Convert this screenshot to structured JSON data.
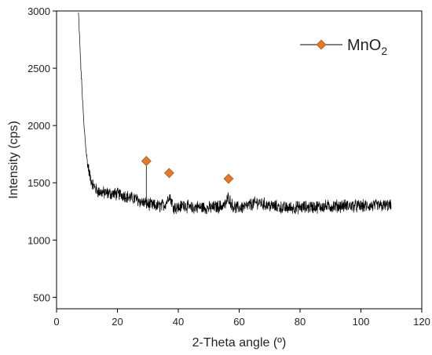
{
  "chart_data": {
    "type": "line",
    "xlabel": "2-Theta angle (º)",
    "ylabel": "Intensity (cps)",
    "xlim": [
      0,
      120
    ],
    "ylim": [
      400,
      3000
    ],
    "xticks": [
      0,
      20,
      40,
      60,
      80,
      100,
      120
    ],
    "yticks": [
      500,
      1000,
      1500,
      2000,
      2500,
      3000
    ],
    "grid": false,
    "legend_position": "top-right",
    "series": [
      {
        "role": "xrd-pattern",
        "color": "#000000",
        "x": [
          7.2,
          8,
          9,
          10,
          11,
          12,
          13,
          14,
          16,
          18,
          20,
          22,
          24,
          26,
          28,
          29.5,
          30.5,
          32,
          34,
          35.5,
          36.5,
          37,
          37.6,
          38.5,
          40,
          42,
          44,
          46,
          50,
          54,
          55.5,
          56.5,
          57.5,
          59,
          62,
          66,
          70,
          75,
          80,
          85,
          90,
          95,
          100,
          105,
          110
        ],
        "y": [
          2980,
          2500,
          2000,
          1700,
          1550,
          1480,
          1440,
          1420,
          1410,
          1405,
          1400,
          1395,
          1370,
          1360,
          1330,
          1320,
          1310,
          1300,
          1295,
          1310,
          1350,
          1400,
          1350,
          1290,
          1280,
          1310,
          1275,
          1290,
          1280,
          1295,
          1310,
          1380,
          1310,
          1280,
          1290,
          1330,
          1300,
          1280,
          1285,
          1290,
          1295,
          1300,
          1295,
          1300,
          1300
        ],
        "noise_amplitude": 50
      }
    ],
    "markers": [
      {
        "name": "MnO₂",
        "color": "#e27a2b",
        "shape": "diamond",
        "points": [
          {
            "x": 29.5,
            "y": 1690
          },
          {
            "x": 37,
            "y": 1585
          },
          {
            "x": 56.5,
            "y": 1535
          }
        ]
      }
    ],
    "reference_line": {
      "x": 29.5,
      "y_from": 1320,
      "y_to": 1690
    }
  },
  "legend": {
    "label_main": "MnO",
    "label_sub": "2"
  }
}
